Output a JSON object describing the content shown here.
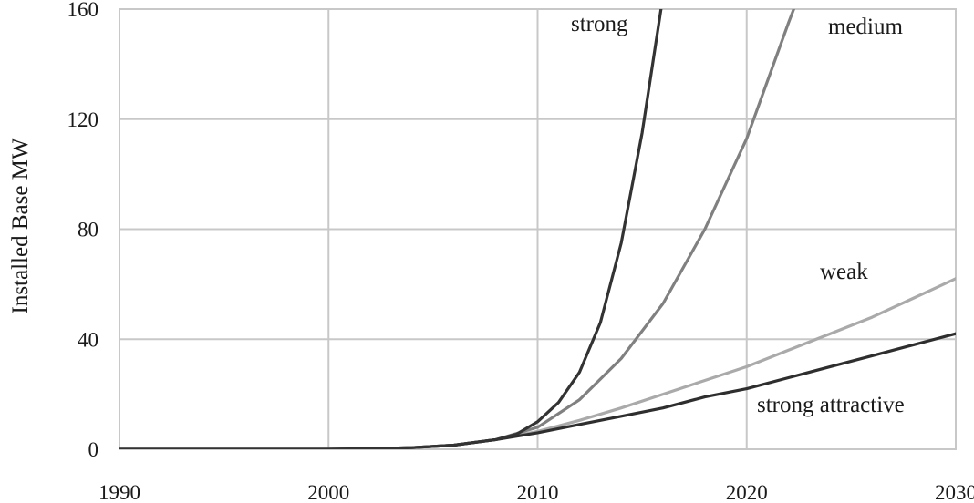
{
  "chart_data": {
    "type": "line",
    "title": "",
    "xlabel": "",
    "ylabel": "Installed Base MW",
    "xlim": [
      1990,
      2030
    ],
    "ylim": [
      0,
      160
    ],
    "x_ticks": [
      "1990",
      "2000",
      "2010",
      "2020",
      "2030"
    ],
    "y_ticks": [
      "0",
      "40",
      "80",
      "120",
      "160"
    ],
    "grid": true,
    "legend": "none",
    "series": [
      {
        "name": "strong",
        "color": "#333333",
        "points": [
          [
            1990,
            0
          ],
          [
            2000,
            0
          ],
          [
            2002,
            0.2
          ],
          [
            2004,
            0.6
          ],
          [
            2006,
            1.5
          ],
          [
            2008,
            3.5
          ],
          [
            2009,
            5.5
          ],
          [
            2010,
            10
          ],
          [
            2011,
            17
          ],
          [
            2012,
            28
          ],
          [
            2013,
            46
          ],
          [
            2014,
            75
          ],
          [
            2015,
            115
          ],
          [
            2015.5,
            140
          ],
          [
            2016,
            165
          ]
        ]
      },
      {
        "name": "medium",
        "color": "#808080",
        "points": [
          [
            1990,
            0
          ],
          [
            2000,
            0
          ],
          [
            2002,
            0.2
          ],
          [
            2004,
            0.6
          ],
          [
            2006,
            1.5
          ],
          [
            2008,
            3.5
          ],
          [
            2010,
            8
          ],
          [
            2012,
            18
          ],
          [
            2014,
            33
          ],
          [
            2016,
            53
          ],
          [
            2018,
            80
          ],
          [
            2020,
            113
          ],
          [
            2022,
            155
          ],
          [
            2022.5,
            165
          ]
        ]
      },
      {
        "name": "weak",
        "color": "#aaaaaa",
        "points": [
          [
            1990,
            0
          ],
          [
            2000,
            0
          ],
          [
            2002,
            0.2
          ],
          [
            2004,
            0.6
          ],
          [
            2006,
            1.5
          ],
          [
            2008,
            3.5
          ],
          [
            2010,
            6.5
          ],
          [
            2012,
            10.5
          ],
          [
            2014,
            15
          ],
          [
            2016,
            20
          ],
          [
            2018,
            25
          ],
          [
            2020,
            30
          ],
          [
            2022,
            36
          ],
          [
            2024,
            42
          ],
          [
            2026,
            48
          ],
          [
            2028,
            55
          ],
          [
            2030,
            62
          ],
          [
            2031,
            66
          ]
        ]
      },
      {
        "name": "strong attractive",
        "color": "#2e2e2e",
        "points": [
          [
            1990,
            0
          ],
          [
            2000,
            0
          ],
          [
            2002,
            0.2
          ],
          [
            2004,
            0.6
          ],
          [
            2006,
            1.5
          ],
          [
            2008,
            3.5
          ],
          [
            2010,
            6
          ],
          [
            2012,
            9
          ],
          [
            2014,
            12
          ],
          [
            2016,
            15
          ],
          [
            2018,
            19
          ],
          [
            2020,
            22
          ],
          [
            2022,
            26
          ],
          [
            2024,
            30
          ],
          [
            2026,
            34
          ],
          [
            2028,
            38
          ],
          [
            2030,
            42
          ],
          [
            2031,
            44
          ]
        ]
      }
    ]
  }
}
